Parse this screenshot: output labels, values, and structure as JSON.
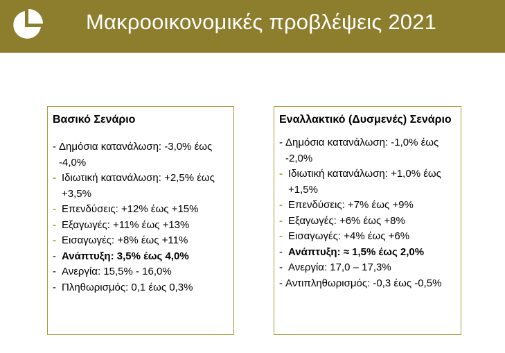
{
  "header": {
    "title": "Μακροοικονομικές προβλέψεις 2021",
    "color": "#8c7e2d",
    "icon": "pie-chart-icon"
  },
  "base": {
    "title": "Βασικό Σενάριο",
    "items": [
      {
        "dash": "-",
        "text": "Δημόσια κατανάλωση: -3,0% έως -4,0%"
      },
      {
        "dash": "-",
        "text": "Ιδιωτική κατανάλωση: +2,5% έως +3,5%"
      },
      {
        "dash": "-",
        "text": "Επενδύσεις: +12% έως +15%"
      },
      {
        "dash": "-",
        "text": "Εξαγωγές: +11% έως +13%"
      },
      {
        "dash": "-",
        "text": "Εισαγωγές: +8% έως +11%"
      },
      {
        "dash": "-",
        "text": "Ανάπτυξη: 3,5% έως 4,0%"
      },
      {
        "dash": "-",
        "text": "Ανεργία: 15,5% - 16,0%"
      },
      {
        "dash": "-",
        "text": "Πληθωρισμός: 0,1 έως 0,3%"
      }
    ]
  },
  "alt": {
    "title": "Εναλλακτικό (Δυσμενές) Σενάριο",
    "items": [
      {
        "dash": "-",
        "text": "Δημόσια κατανάλωση: -1,0% έως -2,0%"
      },
      {
        "dash": "-",
        "text": "Ιδιωτική κατανάλωση: +1,0% έως +1,5%"
      },
      {
        "dash": "-",
        "text": "Επενδύσεις: +7% έως +9%"
      },
      {
        "dash": "-",
        "text": "Εξαγωγές: +6% έως +8%"
      },
      {
        "dash": "-",
        "text": "Εισαγωγές: +4% έως +6%"
      },
      {
        "dash": "-",
        "text": "Ανάπτυξη: ≈ 1,5% έως 2,0%"
      },
      {
        "dash": "-",
        "text": "Ανεργία: 17,0 – 17,3%"
      },
      {
        "dash": "-",
        "text": "Αντιπληθωρισμός: -0,3 έως -0,5%"
      }
    ]
  }
}
